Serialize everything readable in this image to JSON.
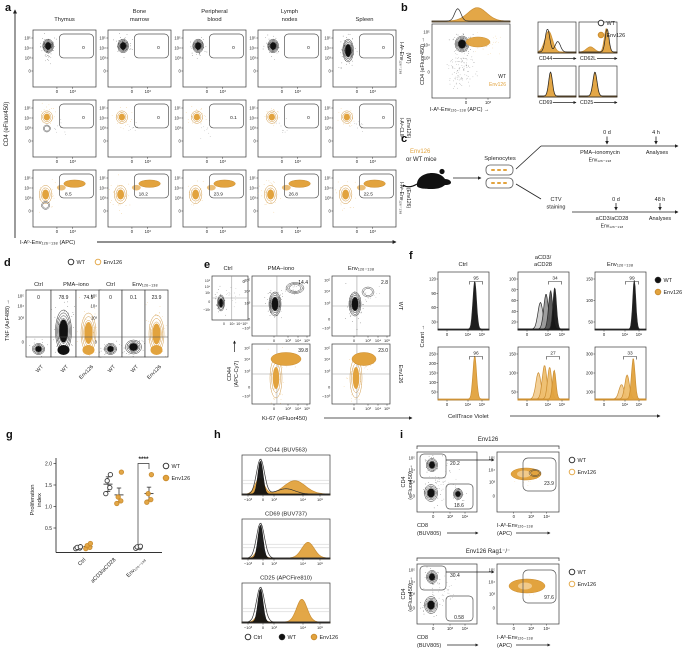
{
  "colors": {
    "orange": "#E2A33E",
    "orange_mid": "#EFBE6D",
    "orange_light": "#F3CE93",
    "orange_dark": "#C98A2B",
    "black": "#111111",
    "frame": "#3a3a3a"
  },
  "panels": {
    "a": "a",
    "b": "b",
    "c": "c",
    "d": "d",
    "e": "e",
    "f": "f",
    "g": "g",
    "h": "h",
    "i": "i"
  },
  "panel_a": {
    "col_headers": [
      [
        "Thymus"
      ],
      [
        "Bone",
        "marrow"
      ],
      [
        "Peripheral",
        "blood"
      ],
      [
        "Lymph",
        "nodes"
      ],
      [
        "Spleen"
      ]
    ],
    "row_labels": [
      [
        "I-Aᵇ-Env₁₂₆₋₁₃₈",
        "(WT)"
      ],
      [
        "I-Aᵇ-CLIP",
        "(Env126)"
      ],
      [
        "I-Aᵇ-Env₁₂₆₋₁₃₈",
        "(Env126)"
      ]
    ],
    "gates": [
      [
        "0",
        "0",
        "0",
        "0",
        "0"
      ],
      [
        "0",
        "0",
        "0.1",
        "0",
        "0"
      ],
      [
        "8.5",
        "18.2",
        "23.9",
        "26.8",
        "22.5"
      ]
    ],
    "y_ticks": [
      "10⁵",
      "10⁴",
      "10³",
      "0"
    ],
    "x_ticks": [
      "0",
      "10³"
    ],
    "y_axis": "CD4 (eFluor450)",
    "x_axis": "I-Aᵇ-Env₁₂₆₋₁₃₈ (APC)"
  },
  "panel_b": {
    "y_axis": "CD4 (eFluor450) →",
    "x_axis": "I-Aᵇ-Env₁₂₆₋₁₃₈ (APC) →",
    "y_ticks": [
      "10⁵",
      "10⁴",
      "10³",
      "0"
    ],
    "x_ticks": [
      "0",
      "10³"
    ],
    "inner_labels": [
      "WT",
      "Env126"
    ],
    "hist_labels": [
      "CD44",
      "CD62L",
      "CD69",
      "CD25"
    ],
    "legend": [
      {
        "label": "WT",
        "style": "open"
      },
      {
        "label": "Env126",
        "style": "orange"
      }
    ]
  },
  "panel_c": {
    "mice_line1": "Env126",
    "mice_line2": "or WT mice",
    "splenocytes": "Splenocytes",
    "ctv_line1": "CTV",
    "ctv_line2": "staining",
    "top": {
      "t0": "0 d",
      "t1": "4 h",
      "stim1": "PMA–ionomycin",
      "stim2": "Env₁₂₆₋₁₃₈",
      "analyses": "Analyses"
    },
    "bottom": {
      "t0": "0 d",
      "t1": "48 h",
      "stim1": "aCD3/aCD28",
      "stim2": "Env₁₂₆₋₁₃₈",
      "analyses": "Analyses"
    }
  },
  "panel_d": {
    "legend": [
      {
        "label": "WT",
        "style": "open"
      },
      {
        "label": "Env126",
        "style": "open-orange"
      }
    ],
    "y_axis": "TNF (AxF488) →",
    "y_ticks": [
      "10⁵",
      "10⁴",
      "10³",
      "0"
    ],
    "groups": [
      {
        "headers": [
          "Ctrl",
          "PMA–iono"
        ],
        "values": [
          "0",
          "78.9",
          "74.5"
        ],
        "x_labels": [
          "WT",
          "WT",
          "Env126"
        ]
      },
      {
        "headers": [
          "Ctrl",
          "Env₁₂₆₋₁₃₈"
        ],
        "values": [
          "0",
          "0.1",
          "23.9"
        ],
        "x_labels": [
          "WT",
          "WT",
          "Env126"
        ]
      }
    ]
  },
  "panel_e": {
    "col_headers": [
      "Ctrl",
      "PMA–iono",
      "Env₁₂₆₋₁₃₈"
    ],
    "row_labels": [
      "WT",
      "Env126"
    ],
    "ctrl_gate": "0",
    "values": [
      [
        "14.4",
        "2.8"
      ],
      [
        "39.8",
        "23.0"
      ]
    ],
    "y_axis": [
      "CD44",
      "(APC-Cy7)"
    ],
    "x_axis": "Ki-67 (eFluor450)",
    "y_ticks": [
      "10⁵",
      "10⁴",
      "10³",
      "0",
      "−10³"
    ],
    "x_ticks": [
      "0",
      "10³",
      "10⁴",
      "10⁵"
    ]
  },
  "panel_f": {
    "col_headers": [
      [
        "Ctrl"
      ],
      [
        "aCD3/",
        "aCD28"
      ],
      [
        "Env₁₂₆₋₁₃₈"
      ]
    ],
    "gate_values": [
      [
        "95",
        "34",
        "99"
      ],
      [
        "96",
        "27",
        "33"
      ]
    ],
    "y_ticks": [
      [
        [
          "120",
          "90",
          "60",
          "30"
        ],
        [
          "100",
          "80",
          "60",
          "40",
          "20"
        ],
        [
          "150",
          "100",
          "50"
        ]
      ],
      [
        [
          "250",
          "200",
          "150",
          "100",
          "50"
        ],
        [
          "150",
          "100",
          "50"
        ],
        [
          "300",
          "200",
          "100"
        ]
      ]
    ],
    "x_ticks": [
      "0",
      "10⁴",
      "10⁵"
    ],
    "x_axis": "CellTrace Violet",
    "y_axis": "Count →",
    "legend": [
      {
        "label": "WT",
        "style": "black"
      },
      {
        "label": "Env126",
        "style": "orange"
      }
    ]
  },
  "panel_g": {
    "y_label": [
      "Proliferation",
      "index"
    ],
    "y_tick_labels": [
      "2.0",
      "1.5",
      "1.0",
      "0.5"
    ],
    "x_labels": [
      "Ctrl",
      "aCD3/aCD28",
      "Env₁₂₆₋₁₃₈"
    ],
    "sig": "****",
    "legend": [
      {
        "label": "WT",
        "style": "open"
      },
      {
        "label": "Env126",
        "style": "orange"
      }
    ]
  },
  "chart_data": {
    "type": "scatter",
    "ylabel": "Proliferation index",
    "ylim": [
      0,
      2.0
    ],
    "yticks": [
      0.5,
      1.0,
      1.5,
      2.0
    ],
    "categories": [
      "Ctrl",
      "aCD3/aCD28",
      "Env126-138"
    ],
    "legend_position": "right",
    "series": [
      {
        "name": "WT",
        "marker": "open-circle",
        "values": [
          [
            0.02,
            0.035,
            0.05,
            0.065
          ],
          [
            1.3,
            1.44,
            1.6,
            1.74
          ],
          [
            0.03,
            0.045,
            0.06,
            0.075
          ]
        ],
        "mean": [
          0.04,
          1.52,
          0.05
        ],
        "sd": [
          0.02,
          0.17,
          0.02
        ]
      },
      {
        "name": "Env126",
        "marker": "orange-circle",
        "values": [
          [
            0.02,
            0.05,
            0.09,
            0.14
          ],
          [
            1.07,
            1.13,
            1.22,
            1.8
          ],
          [
            1.1,
            1.16,
            1.3,
            1.74
          ]
        ],
        "mean": [
          0.07,
          1.27,
          1.3
        ],
        "sd": [
          0.04,
          0.16,
          0.15
        ]
      }
    ],
    "significance": {
      "label": "****",
      "between": [
        "WT",
        "Env126"
      ],
      "at": "Env126-138"
    }
  },
  "panel_h": {
    "titles": [
      "CD44 (BUV563)",
      "CD69 (BUV737)",
      "CD25 (APCFire810)"
    ],
    "x_ticks": [
      "−10³",
      "0",
      "10³",
      "10⁴",
      "10⁵"
    ],
    "legend": [
      {
        "label": "Ctrl",
        "style": "open"
      },
      {
        "label": "WT",
        "style": "black"
      },
      {
        "label": "Env126",
        "style": "orange"
      }
    ]
  },
  "panel_i": {
    "blocks": [
      {
        "title": "Env126",
        "cd4_gate": "20.2",
        "cd8_gate": "18.6",
        "tet_gate": "23.9"
      },
      {
        "title": "Env126 Rag1⁻/⁻",
        "cd4_gate": "30.4",
        "cd8_gate": "0.58",
        "tet_gate": "97.6"
      }
    ],
    "legend": [
      {
        "label": "WT",
        "style": "open"
      },
      {
        "label": "Env126",
        "style": "open-orange"
      }
    ],
    "y_axis": [
      "CD4",
      "(eFluor450) →"
    ],
    "x_axis_left": [
      "CD8",
      "(BUV805)"
    ],
    "x_axis_right": [
      "I-Aᵇ-Env₁₂₆₋₁₃₈",
      "(APC)"
    ],
    "y_ticks": [
      "10⁵",
      "10⁴",
      "10³",
      "0"
    ],
    "x_ticks": [
      "0",
      "10³",
      "10⁴"
    ]
  }
}
